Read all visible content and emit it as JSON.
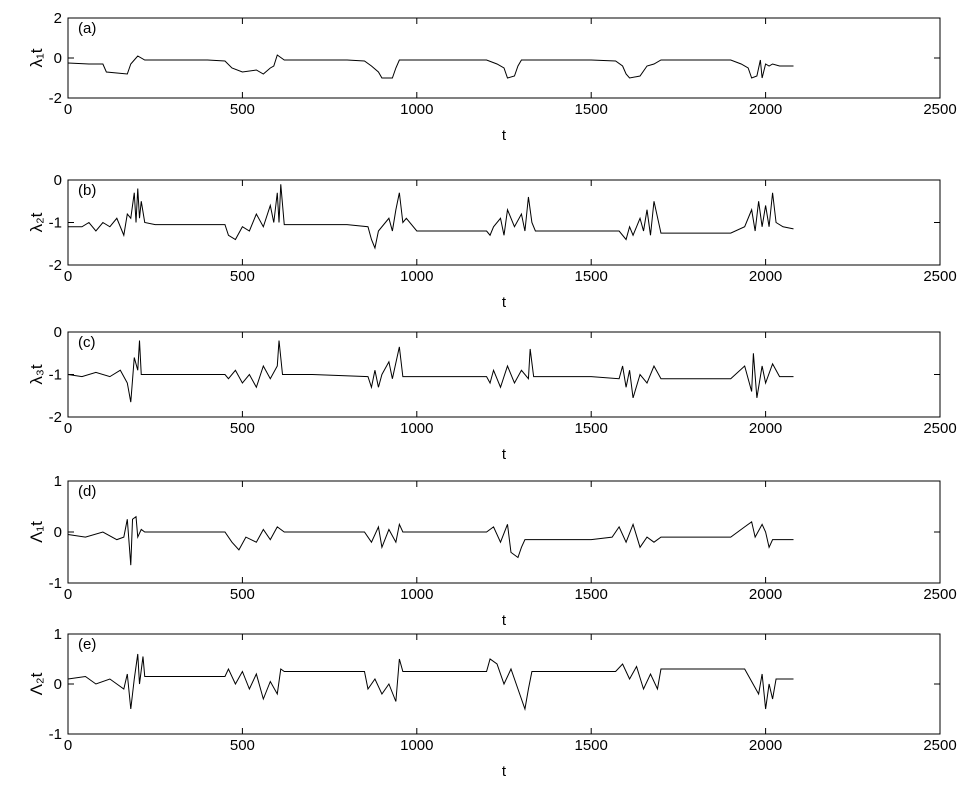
{
  "chart_data": [
    {
      "type": "line",
      "annotation": "(a)",
      "ylabel": "λ₁t",
      "xlabel": "t",
      "color": "#000000",
      "xlim": [
        0,
        2500
      ],
      "xticks": [
        0,
        500,
        1000,
        1500,
        2000,
        2500
      ],
      "ylim": [
        -2,
        2
      ],
      "yticks": [
        -2,
        0,
        2
      ],
      "x": [
        0,
        60,
        100,
        110,
        170,
        180,
        190,
        200,
        220,
        300,
        400,
        450,
        470,
        500,
        540,
        560,
        580,
        590,
        600,
        620,
        700,
        800,
        850,
        870,
        890,
        900,
        930,
        940,
        950,
        1000,
        1100,
        1200,
        1230,
        1250,
        1260,
        1280,
        1290,
        1300,
        1320,
        1400,
        1500,
        1570,
        1590,
        1600,
        1610,
        1640,
        1660,
        1680,
        1700,
        1800,
        1900,
        1930,
        1950,
        1960,
        1975,
        1985,
        1990,
        2000,
        2010,
        2020,
        2040,
        2080
      ],
      "values": [
        -0.25,
        -0.3,
        -0.3,
        -0.7,
        -0.8,
        -0.3,
        -0.1,
        0.1,
        -0.1,
        -0.1,
        -0.1,
        -0.15,
        -0.5,
        -0.7,
        -0.6,
        -0.8,
        -0.5,
        -0.4,
        0.15,
        -0.1,
        -0.1,
        -0.1,
        -0.15,
        -0.4,
        -0.7,
        -1.0,
        -1.0,
        -0.5,
        -0.1,
        -0.1,
        -0.1,
        -0.1,
        -0.3,
        -0.5,
        -1.0,
        -0.9,
        -0.4,
        -0.1,
        -0.1,
        -0.1,
        -0.1,
        -0.15,
        -0.4,
        -0.8,
        -1.0,
        -0.9,
        -0.4,
        -0.3,
        -0.1,
        -0.1,
        -0.1,
        -0.3,
        -0.5,
        -1.0,
        -0.9,
        -0.1,
        -1.0,
        -0.3,
        -0.4,
        -0.3,
        -0.4,
        -0.4
      ]
    },
    {
      "type": "line",
      "annotation": "(b)",
      "ylabel": "λ₂t",
      "xlabel": "t",
      "color": "#000000",
      "xlim": [
        0,
        2500
      ],
      "xticks": [
        0,
        500,
        1000,
        1500,
        2000,
        2500
      ],
      "ylim": [
        -2,
        0
      ],
      "yticks": [
        -2,
        -1,
        0
      ],
      "x": [
        0,
        40,
        60,
        80,
        100,
        120,
        140,
        160,
        170,
        180,
        190,
        195,
        200,
        205,
        210,
        220,
        250,
        300,
        400,
        450,
        460,
        480,
        500,
        520,
        540,
        560,
        580,
        590,
        600,
        605,
        610,
        620,
        700,
        800,
        860,
        870,
        880,
        890,
        900,
        920,
        930,
        940,
        950,
        960,
        970,
        1000,
        1100,
        1200,
        1210,
        1220,
        1240,
        1250,
        1260,
        1280,
        1300,
        1310,
        1320,
        1330,
        1340,
        1400,
        1500,
        1580,
        1600,
        1610,
        1620,
        1640,
        1650,
        1660,
        1670,
        1680,
        1700,
        1800,
        1900,
        1940,
        1960,
        1970,
        1980,
        1990,
        2000,
        2010,
        2020,
        2030,
        2050,
        2080
      ],
      "values": [
        -1.1,
        -1.1,
        -1.0,
        -1.2,
        -1.0,
        -1.1,
        -0.9,
        -1.3,
        -0.8,
        -0.9,
        -0.3,
        -1.0,
        -0.2,
        -0.9,
        -0.5,
        -1.0,
        -1.05,
        -1.05,
        -1.05,
        -1.05,
        -1.3,
        -1.4,
        -1.1,
        -1.2,
        -0.8,
        -1.1,
        -0.6,
        -1.0,
        -0.3,
        -1.0,
        -0.1,
        -1.05,
        -1.05,
        -1.05,
        -1.1,
        -1.4,
        -1.6,
        -1.2,
        -1.1,
        -0.9,
        -1.2,
        -0.7,
        -0.3,
        -1.0,
        -0.9,
        -1.2,
        -1.2,
        -1.2,
        -1.3,
        -1.1,
        -0.9,
        -1.3,
        -0.7,
        -1.1,
        -0.8,
        -1.2,
        -0.4,
        -1.0,
        -1.2,
        -1.2,
        -1.2,
        -1.2,
        -1.4,
        -1.1,
        -1.3,
        -0.9,
        -1.2,
        -0.7,
        -1.3,
        -0.5,
        -1.25,
        -1.25,
        -1.25,
        -1.1,
        -0.7,
        -1.2,
        -0.5,
        -1.1,
        -0.6,
        -1.1,
        -0.3,
        -1.0,
        -1.1,
        -1.15
      ]
    },
    {
      "type": "line",
      "annotation": "(c)",
      "ylabel": "λ₃t",
      "xlabel": "t",
      "color": "#000000",
      "xlim": [
        0,
        2500
      ],
      "xticks": [
        0,
        500,
        1000,
        1500,
        2000,
        2500
      ],
      "ylim": [
        -2,
        0
      ],
      "yticks": [
        -2,
        -1,
        0
      ],
      "x": [
        0,
        40,
        80,
        120,
        150,
        170,
        180,
        190,
        200,
        205,
        210,
        220,
        300,
        450,
        460,
        480,
        500,
        520,
        540,
        560,
        580,
        600,
        605,
        615,
        700,
        860,
        870,
        880,
        890,
        900,
        920,
        930,
        950,
        960,
        1000,
        1200,
        1210,
        1220,
        1240,
        1260,
        1280,
        1300,
        1320,
        1325,
        1335,
        1500,
        1580,
        1590,
        1600,
        1610,
        1620,
        1640,
        1660,
        1680,
        1700,
        1900,
        1940,
        1960,
        1965,
        1975,
        1990,
        2000,
        2020,
        2040,
        2080
      ],
      "values": [
        -1.0,
        -1.05,
        -0.95,
        -1.05,
        -0.9,
        -1.2,
        -1.65,
        -0.6,
        -0.9,
        -0.2,
        -1.0,
        -1.0,
        -1.0,
        -1.0,
        -1.1,
        -0.9,
        -1.2,
        -1.0,
        -1.3,
        -0.8,
        -1.1,
        -0.8,
        -0.2,
        -1.0,
        -1.0,
        -1.05,
        -1.3,
        -0.9,
        -1.3,
        -1.0,
        -0.7,
        -1.1,
        -0.35,
        -1.05,
        -1.05,
        -1.05,
        -1.2,
        -0.9,
        -1.3,
        -0.8,
        -1.2,
        -0.9,
        -1.1,
        -0.4,
        -1.05,
        -1.05,
        -1.1,
        -0.8,
        -1.3,
        -0.9,
        -1.55,
        -1.0,
        -1.2,
        -0.8,
        -1.1,
        -1.1,
        -0.8,
        -1.4,
        -0.5,
        -1.55,
        -0.8,
        -1.2,
        -0.75,
        -1.05,
        -1.05
      ]
    },
    {
      "type": "line",
      "annotation": "(d)",
      "ylabel": "Λ₁t",
      "xlabel": "t",
      "color": "#000000",
      "xlim": [
        0,
        2500
      ],
      "xticks": [
        0,
        500,
        1000,
        1500,
        2000,
        2500
      ],
      "ylim": [
        -1,
        1
      ],
      "yticks": [
        -1,
        0,
        1
      ],
      "x": [
        0,
        50,
        100,
        140,
        160,
        170,
        180,
        185,
        195,
        200,
        210,
        220,
        300,
        450,
        470,
        490,
        510,
        540,
        560,
        580,
        600,
        620,
        800,
        850,
        870,
        890,
        900,
        920,
        940,
        950,
        960,
        1000,
        1200,
        1220,
        1240,
        1260,
        1270,
        1290,
        1300,
        1310,
        1500,
        1560,
        1580,
        1600,
        1620,
        1640,
        1660,
        1680,
        1700,
        1900,
        1940,
        1960,
        1970,
        1990,
        2000,
        2010,
        2020,
        2080
      ],
      "values": [
        -0.05,
        -0.1,
        0.0,
        -0.15,
        -0.1,
        0.25,
        -0.65,
        0.25,
        0.3,
        -0.1,
        0.05,
        0.0,
        0.0,
        0.0,
        -0.2,
        -0.35,
        -0.1,
        -0.2,
        0.05,
        -0.15,
        0.1,
        0.0,
        0.0,
        0.0,
        -0.2,
        0.1,
        -0.3,
        0.05,
        -0.2,
        0.15,
        0.0,
        0.0,
        0.0,
        0.1,
        -0.2,
        0.15,
        -0.4,
        -0.5,
        -0.3,
        -0.15,
        -0.15,
        -0.1,
        0.1,
        -0.2,
        0.15,
        -0.3,
        -0.1,
        -0.2,
        -0.1,
        -0.1,
        0.1,
        0.2,
        -0.1,
        0.15,
        0.0,
        -0.3,
        -0.15,
        -0.15
      ]
    },
    {
      "type": "line",
      "annotation": "(e)",
      "ylabel": "Λ₂t",
      "xlabel": "t",
      "color": "#000000",
      "xlim": [
        0,
        2500
      ],
      "xticks": [
        0,
        500,
        1000,
        1500,
        2000,
        2500
      ],
      "ylim": [
        -1,
        1
      ],
      "yticks": [
        -1,
        0,
        1
      ],
      "x": [
        0,
        50,
        80,
        120,
        140,
        160,
        170,
        180,
        190,
        200,
        205,
        215,
        220,
        300,
        450,
        460,
        480,
        500,
        520,
        540,
        560,
        580,
        600,
        610,
        620,
        800,
        850,
        860,
        880,
        900,
        920,
        940,
        950,
        960,
        1000,
        1200,
        1210,
        1230,
        1250,
        1270,
        1290,
        1310,
        1320,
        1330,
        1500,
        1570,
        1590,
        1610,
        1630,
        1650,
        1670,
        1690,
        1700,
        1900,
        1940,
        1960,
        1980,
        1990,
        2000,
        2010,
        2020,
        2030,
        2080
      ],
      "values": [
        0.1,
        0.15,
        0.0,
        0.1,
        0.0,
        -0.1,
        0.2,
        -0.5,
        0.1,
        0.6,
        0.0,
        0.55,
        0.15,
        0.15,
        0.15,
        0.3,
        0.0,
        0.25,
        -0.1,
        0.2,
        -0.3,
        0.05,
        -0.2,
        0.3,
        0.25,
        0.25,
        0.25,
        -0.1,
        0.1,
        -0.2,
        0.0,
        -0.35,
        0.5,
        0.25,
        0.25,
        0.25,
        0.5,
        0.4,
        0.0,
        0.3,
        -0.1,
        -0.5,
        -0.1,
        0.25,
        0.25,
        0.25,
        0.4,
        0.1,
        0.35,
        -0.1,
        0.2,
        -0.1,
        0.3,
        0.3,
        0.3,
        0.05,
        -0.2,
        0.2,
        -0.5,
        0.0,
        -0.3,
        0.1,
        0.1
      ]
    }
  ]
}
